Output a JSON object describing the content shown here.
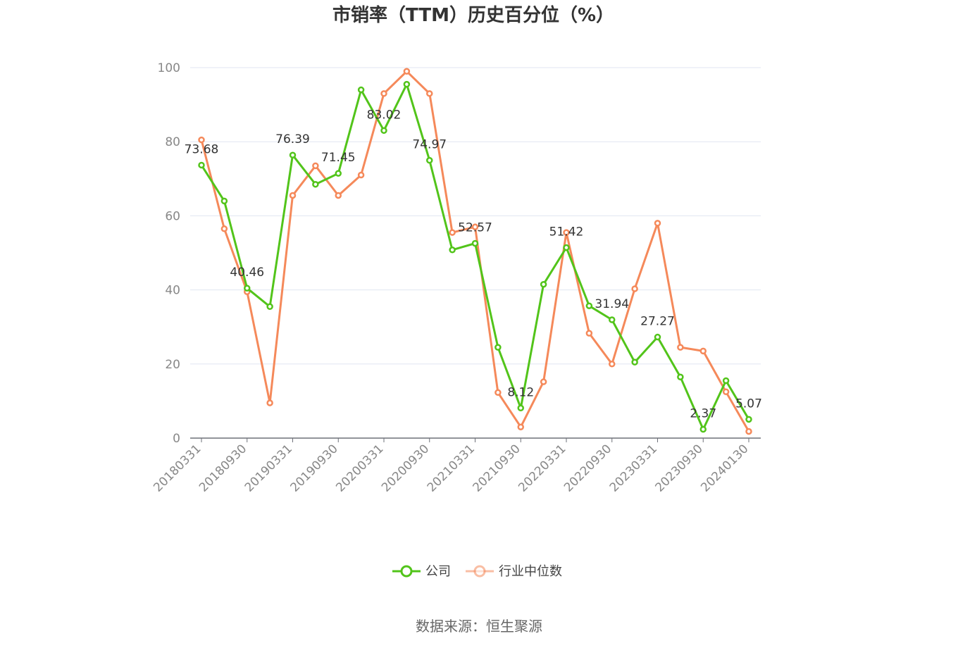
{
  "chart_data": {
    "type": "line",
    "title": "市销率（TTM）历史百分位（%）",
    "categories": [
      "20180331",
      "20180630",
      "20180930",
      "20181231",
      "20190331",
      "20190630",
      "20190930",
      "20191231",
      "20200331",
      "20200630",
      "20200930",
      "20201231",
      "20210331",
      "20210630",
      "20210930",
      "20211231",
      "20220331",
      "20220630",
      "20220930",
      "20221231",
      "20230331",
      "20230630",
      "20230930",
      "20231231",
      "20240130"
    ],
    "x_tick_labels": [
      "20180331",
      "20180930",
      "20190331",
      "20190930",
      "20200331",
      "20200930",
      "20210331",
      "20210930",
      "20220331",
      "20220930",
      "20230331",
      "20230930",
      "20240130"
    ],
    "ylim": [
      0,
      100
    ],
    "y_ticks": [
      0,
      20,
      40,
      60,
      80,
      100
    ],
    "grid": true,
    "legend_position": "bottom",
    "series": [
      {
        "name": "公司",
        "color": "#52c41a",
        "values": [
          73.68,
          64.0,
          40.46,
          35.5,
          76.39,
          68.5,
          71.45,
          94.0,
          83.02,
          95.5,
          74.97,
          50.8,
          52.57,
          24.5,
          8.12,
          41.5,
          51.42,
          35.7,
          31.94,
          20.5,
          27.27,
          16.5,
          2.37,
          15.5,
          5.07
        ],
        "labels": [
          "73.68",
          "",
          "40.46",
          "",
          "76.39",
          "",
          "71.45",
          "",
          "83.02",
          "",
          "74.97",
          "",
          "52.57",
          "",
          "8.12",
          "",
          "51.42",
          "",
          "31.94",
          "",
          "27.27",
          "",
          "2.37",
          "",
          "5.07"
        ]
      },
      {
        "name": "行业中位数",
        "color": "#f5895a",
        "values": [
          80.5,
          56.5,
          39.5,
          9.5,
          65.5,
          73.5,
          65.5,
          71.0,
          93.0,
          99.0,
          93.0,
          55.5,
          57.0,
          12.3,
          3.0,
          15.2,
          55.5,
          28.3,
          20.0,
          40.3,
          58.0,
          24.5,
          23.5,
          12.5,
          1.8
        ]
      }
    ]
  },
  "source": {
    "text": "数据来源：恒生聚源"
  }
}
